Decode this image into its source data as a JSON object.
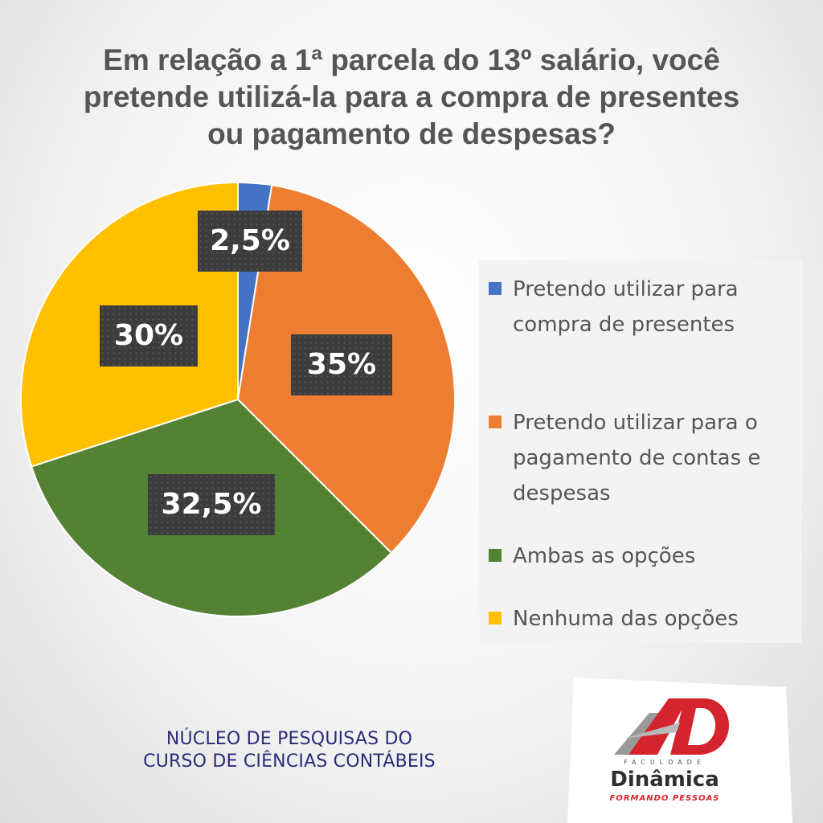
{
  "chart_data": {
    "type": "pie",
    "title_lines": [
      "Em relação a 1ª parcela do 13º salário, você",
      "pretende utilizá-la para a compra de presentes",
      "ou pagamento de despesas?"
    ],
    "slices": [
      {
        "name_lines": [
          "Pretendo utilizar para",
          "compra de presentes"
        ],
        "value": 2.5,
        "label": "2,5%",
        "color": "#4472c4"
      },
      {
        "name_lines": [
          "Pretendo utilizar para o",
          "pagamento de contas e",
          "despesas"
        ],
        "value": 35,
        "label": "35%",
        "color": "#ed7d31"
      },
      {
        "name_lines": [
          "Ambas as opções"
        ],
        "value": 32.5,
        "label": "32,5%",
        "color": "#548235"
      },
      {
        "name_lines": [
          "Nenhuma das opções"
        ],
        "value": 30,
        "label": "30%",
        "color": "#ffc000"
      }
    ],
    "start_angle": "12 o'clock",
    "direction": "clockwise",
    "legend_position": "right"
  },
  "footer": {
    "lines": [
      "NÚCLEO DE PESQUISAS DO",
      "CURSO DE CIÊNCIAS CONTÁBEIS"
    ]
  },
  "logo": {
    "small_text": "FACULDADE",
    "name": "Dinâmica",
    "tagline": "FORMANDO PESSOAS",
    "brand_color": "#d4242e"
  }
}
